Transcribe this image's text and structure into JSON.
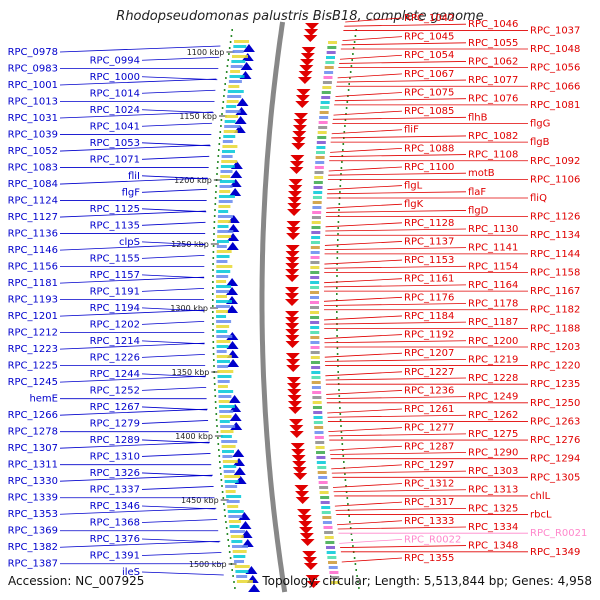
{
  "title": "Rhodopseudomonas palustris BisB18, complete genome",
  "footer": {
    "accession": "Accession: NC_007925",
    "summary": "Topology: circular; Length: 5,513,844 bp; Genes: 4,958"
  },
  "colors": {
    "forward": "#e00000",
    "reverse": "#0000cc",
    "rna": "#ff88cc",
    "backbone": "#888888",
    "tick": "#2a8a2a",
    "text": "#111111"
  },
  "scale_labels": [
    "1100 kbp",
    "1150 kbp",
    "1200 kbp",
    "1250 kbp",
    "1300 kbp",
    "1350 kbp",
    "1400 kbp",
    "1450 kbp",
    "1500 kbp"
  ],
  "left_genes": [
    "RPC_0978",
    "RPC_0994",
    "RPC_0983",
    "RPC_1000",
    "RPC_1001",
    "RPC_1014",
    "RPC_1013",
    "RPC_1024",
    "RPC_1031",
    "RPC_1041",
    "RPC_1039",
    "RPC_1053",
    "RPC_1052",
    "RPC_1071",
    "RPC_1083",
    "fliI",
    "RPC_1084",
    "flgF",
    "RPC_1124",
    "RPC_1125",
    "RPC_1127",
    "RPC_1135",
    "RPC_1136",
    "clpS",
    "RPC_1146",
    "RPC_1155",
    "RPC_1156",
    "RPC_1157",
    "RPC_1181",
    "RPC_1191",
    "RPC_1193",
    "RPC_1194",
    "RPC_1201",
    "RPC_1202",
    "RPC_1212",
    "RPC_1214",
    "RPC_1223",
    "RPC_1226",
    "RPC_1225",
    "RPC_1244",
    "RPC_1245",
    "RPC_1252",
    "hemE",
    "RPC_1267",
    "RPC_1266",
    "RPC_1279",
    "RPC_1278",
    "RPC_1289",
    "RPC_1307",
    "RPC_1310",
    "RPC_1311",
    "RPC_1326",
    "RPC_1330",
    "RPC_1337",
    "RPC_1339",
    "RPC_1346",
    "RPC_1353",
    "RPC_1368",
    "RPC_1369",
    "RPC_1376",
    "RPC_1382",
    "RPC_1391",
    "RPC_1387",
    "ileS"
  ],
  "right_genes": [
    "RPC_1042",
    "RPC_1046",
    "RPC_1037",
    "RPC_1045",
    "RPC_1055",
    "RPC_1048",
    "RPC_1054",
    "RPC_1062",
    "RPC_1056",
    "RPC_1067",
    "RPC_1077",
    "RPC_1066",
    "RPC_1075",
    "RPC_1076",
    "RPC_1081",
    "RPC_1085",
    "flhB",
    "flgG",
    "fliF",
    "RPC_1082",
    "flgB",
    "RPC_1088",
    "RPC_1108",
    "RPC_1092",
    "RPC_1100",
    "motB",
    "RPC_1106",
    "flgL",
    "flaF",
    "fliQ",
    "flgK",
    "flgD",
    "RPC_1126",
    "RPC_1128",
    "RPC_1130",
    "RPC_1134",
    "RPC_1137",
    "RPC_1141",
    "RPC_1144",
    "RPC_1153",
    "RPC_1154",
    "RPC_1158",
    "RPC_1161",
    "RPC_1164",
    "RPC_1167",
    "RPC_1176",
    "RPC_1178",
    "RPC_1182",
    "RPC_1184",
    "RPC_1187",
    "RPC_1188",
    "RPC_1192",
    "RPC_1200",
    "RPC_1203",
    "RPC_1207",
    "RPC_1219",
    "RPC_1220",
    "RPC_1227",
    "RPC_1228",
    "RPC_1235",
    "RPC_1236",
    "RPC_1249",
    "RPC_1250",
    "RPC_1261",
    "RPC_1262",
    "RPC_1263",
    "RPC_1277",
    "RPC_1275",
    "RPC_1276",
    "RPC_1287",
    "RPC_1290",
    "RPC_1294",
    "RPC_1297",
    "RPC_1303",
    "RPC_1305",
    "RPC_1312",
    "RPC_1313",
    "chlL",
    "RPC_1317",
    "RPC_1325",
    "rbcL",
    "RPC_1333",
    "RPC_1334",
    "RPC_R0021",
    "RPC_R0022",
    "RPC_1348",
    "RPC_1349",
    "RPC_1355"
  ],
  "rna_genes": [
    "RPC_R0021",
    "RPC_R0022"
  ]
}
